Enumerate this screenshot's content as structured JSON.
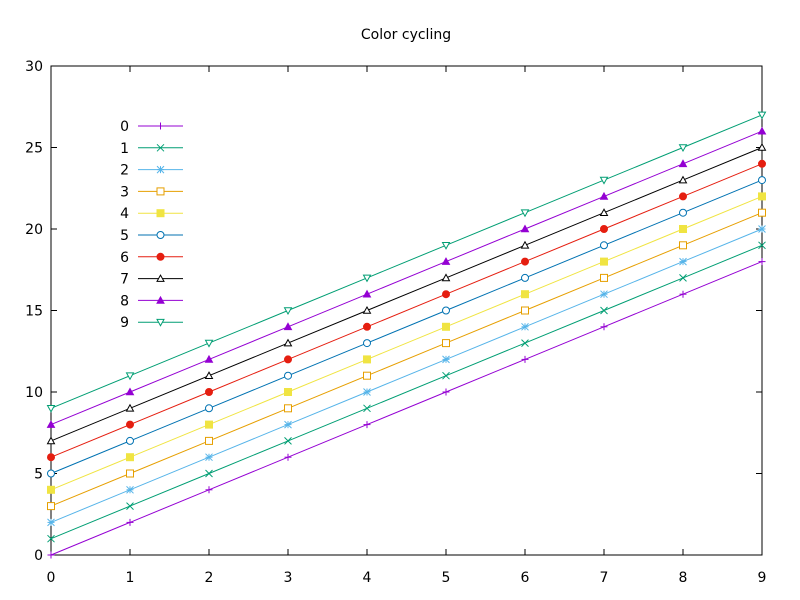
{
  "chart_data": {
    "type": "line",
    "title": "Color cycling",
    "xlabel": "",
    "ylabel": "",
    "xlim": [
      0,
      9
    ],
    "ylim": [
      0,
      30
    ],
    "x": [
      0,
      1,
      2,
      3,
      4,
      5,
      6,
      7,
      8,
      9
    ],
    "x_ticks": [
      "0",
      "1",
      "2",
      "3",
      "4",
      "5",
      "6",
      "7",
      "8",
      "9"
    ],
    "y_ticks": [
      "0",
      "5",
      "10",
      "15",
      "20",
      "25",
      "30"
    ],
    "legend_position": "top-left",
    "grid": false,
    "series": [
      {
        "name": "0",
        "color": "#9400d3",
        "marker": "plus",
        "values": [
          0,
          2,
          4,
          6,
          8,
          10,
          12,
          14,
          16,
          18
        ]
      },
      {
        "name": "1",
        "color": "#009e73",
        "marker": "cross",
        "values": [
          1,
          3,
          5,
          7,
          9,
          11,
          13,
          15,
          17,
          19
        ]
      },
      {
        "name": "2",
        "color": "#56b4e9",
        "marker": "star",
        "values": [
          2,
          4,
          6,
          8,
          10,
          12,
          14,
          16,
          18,
          20
        ]
      },
      {
        "name": "3",
        "color": "#e69f00",
        "marker": "box-open",
        "values": [
          3,
          5,
          7,
          9,
          11,
          13,
          15,
          17,
          19,
          21
        ]
      },
      {
        "name": "4",
        "color": "#f0e442",
        "marker": "box-filled",
        "values": [
          4,
          6,
          8,
          10,
          12,
          14,
          16,
          18,
          20,
          22
        ]
      },
      {
        "name": "5",
        "color": "#0072b2",
        "marker": "circle-open",
        "values": [
          5,
          7,
          9,
          11,
          13,
          15,
          17,
          19,
          21,
          23
        ]
      },
      {
        "name": "6",
        "color": "#e51e10",
        "marker": "circle-filled",
        "values": [
          6,
          8,
          10,
          12,
          14,
          16,
          18,
          20,
          22,
          24
        ]
      },
      {
        "name": "7",
        "color": "#000000",
        "marker": "triangle-open",
        "values": [
          7,
          9,
          11,
          13,
          15,
          17,
          19,
          21,
          23,
          25
        ]
      },
      {
        "name": "8",
        "color": "#9400d3",
        "marker": "triangle-filled",
        "values": [
          8,
          10,
          12,
          14,
          16,
          18,
          20,
          22,
          24,
          26
        ]
      },
      {
        "name": "9",
        "color": "#009e73",
        "marker": "triangle-down-open",
        "values": [
          9,
          11,
          13,
          15,
          17,
          19,
          21,
          23,
          25,
          27
        ]
      }
    ]
  }
}
